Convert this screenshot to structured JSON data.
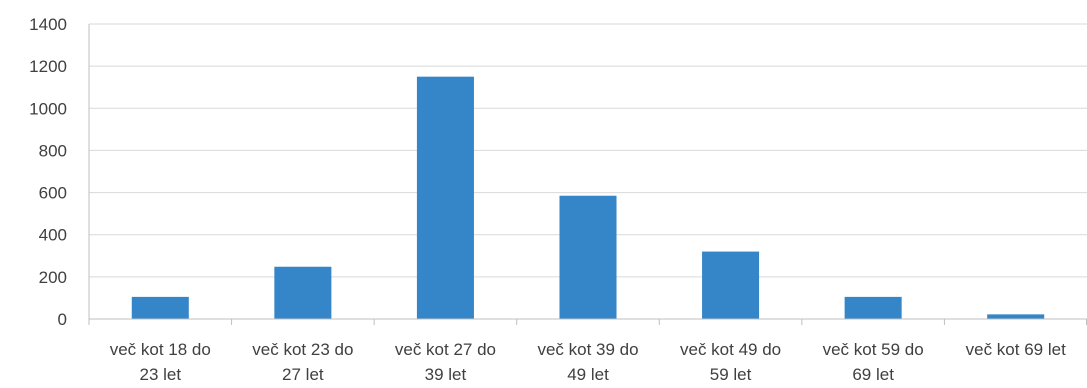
{
  "chart_data": {
    "type": "bar",
    "categories": [
      [
        "več kot 18 do",
        "23 let"
      ],
      [
        "več kot 23 do",
        "27 let"
      ],
      [
        "več kot 27 do",
        "39 let"
      ],
      [
        "več kot 39 do",
        "49 let"
      ],
      [
        "več kot 49 do",
        "59 let"
      ],
      [
        "več kot 59 do",
        "69 let"
      ],
      [
        "več kot 69 let"
      ]
    ],
    "values": [
      105,
      248,
      1150,
      585,
      320,
      105,
      22
    ],
    "ylim": [
      0,
      1400
    ],
    "yticks": [
      "0",
      "200",
      "400",
      "600",
      "800",
      "1000",
      "1200",
      "1400"
    ],
    "title": "",
    "xlabel": "",
    "ylabel": "",
    "grid": true,
    "legend": "none",
    "colors": {
      "bar": "#3486c8",
      "grid": "#d9d9d9",
      "axis": "#bfbfbf",
      "text": "#404040"
    }
  }
}
